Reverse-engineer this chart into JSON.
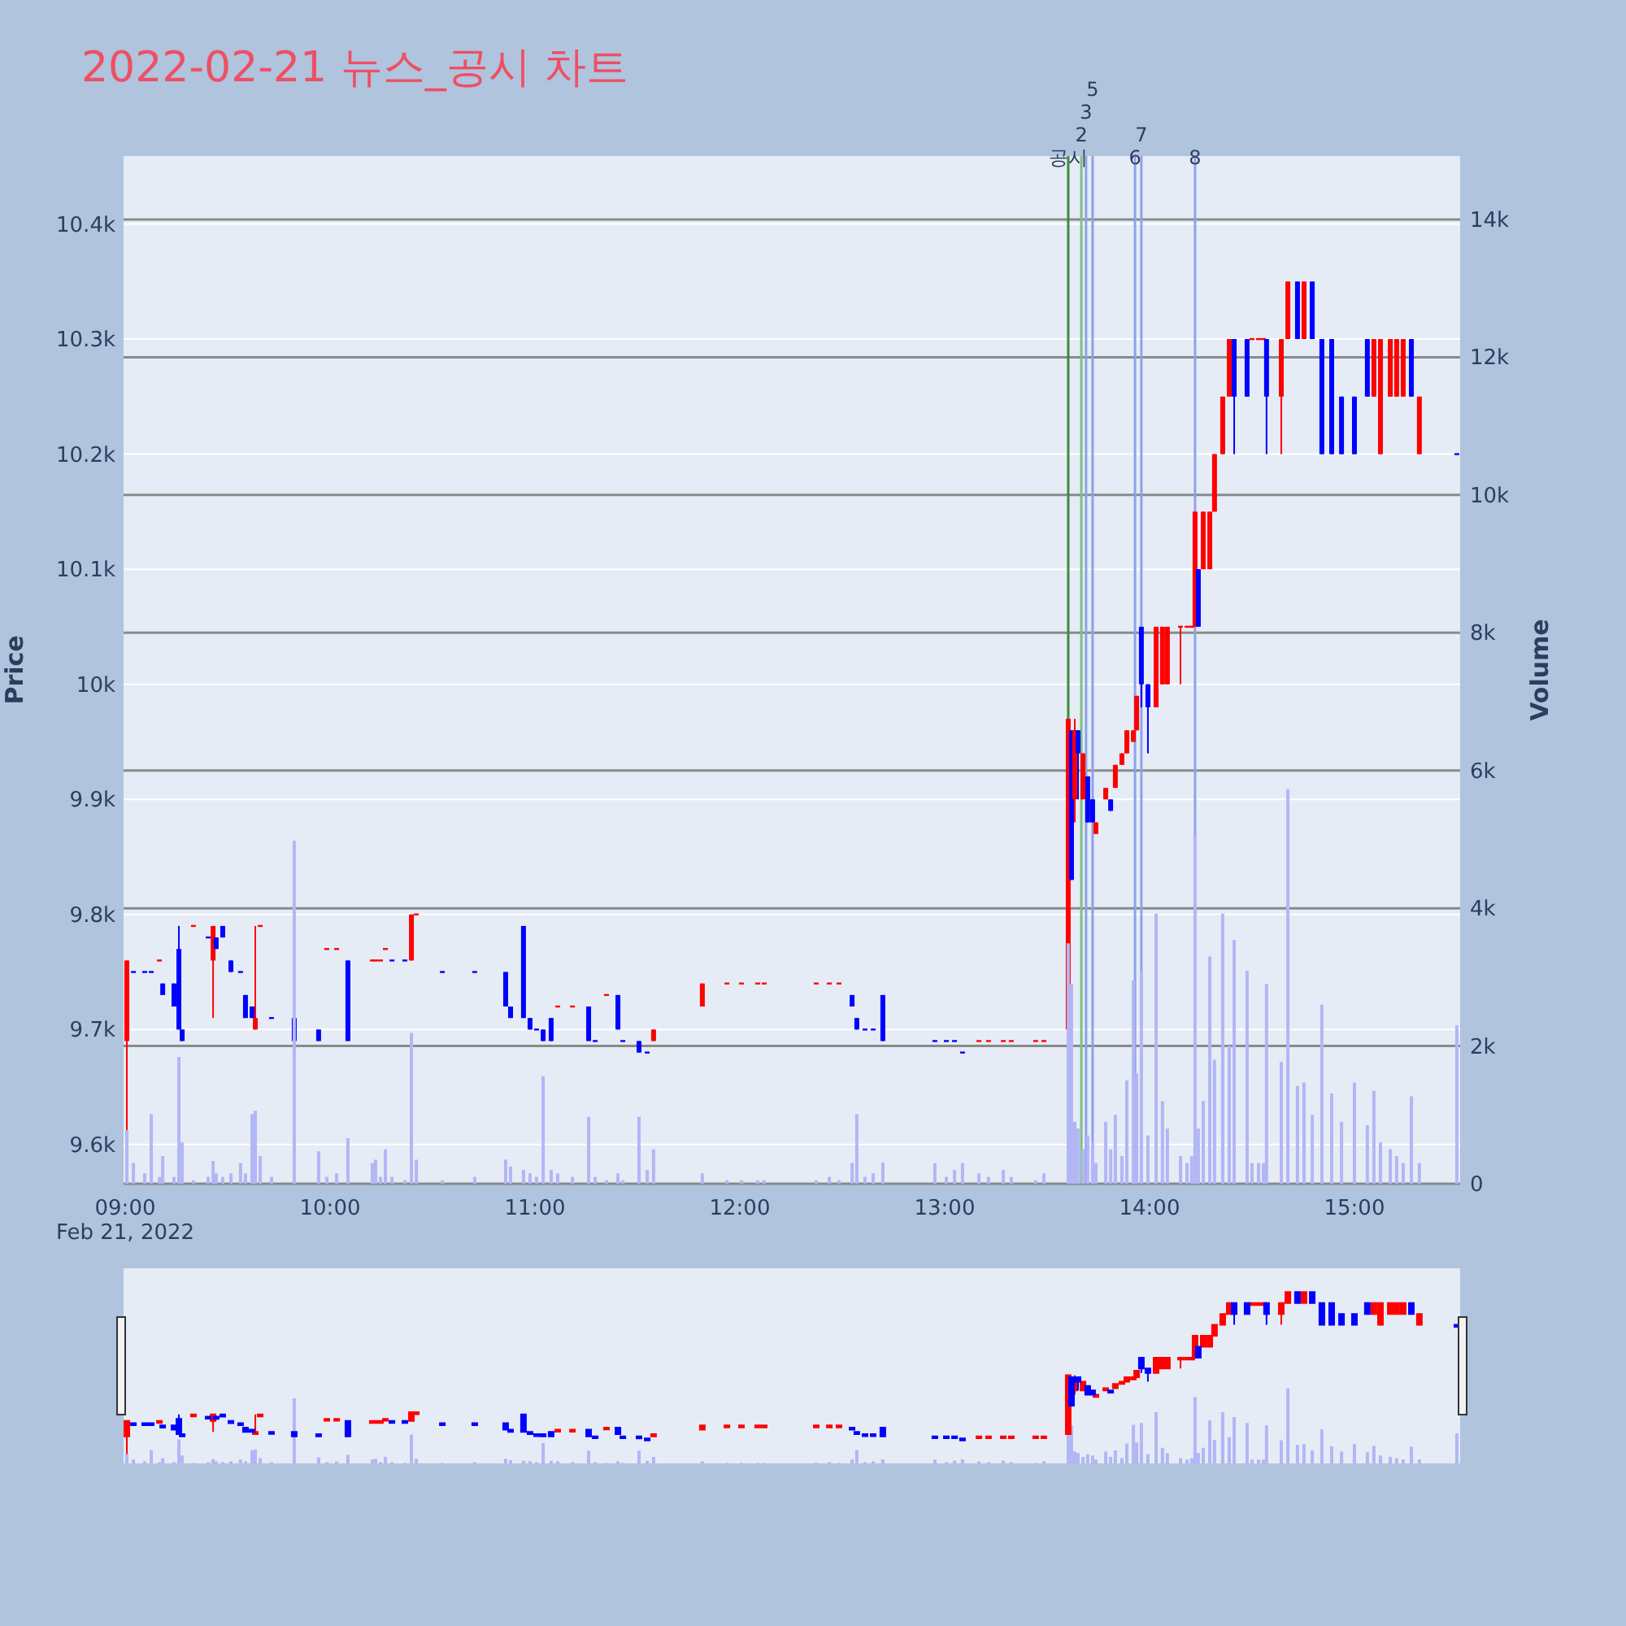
{
  "chart_data": {
    "type": "candlestick",
    "title": "2022-02-21 뉴스_공시 차트",
    "ylabel": "Price",
    "y2label": "Volume",
    "annotations": [
      "Feb 21, 2022",
      {
        "text": "2",
        "x": 13.667,
        "y": 10459
      },
      {
        "text": "3",
        "x": 13.69,
        "y": 10459
      },
      {
        "text": "5",
        "x": 13.722,
        "y": 10459
      },
      {
        "text": "6",
        "x": 13.929,
        "y": 10459
      },
      {
        "text": "7",
        "x": 13.96,
        "y": 10459
      },
      {
        "text": "8",
        "x": 14.222,
        "y": 10459
      }
    ],
    "xlim": [
      8.992,
      15.516
    ],
    "xticks": [
      {
        "value": 9,
        "label": "09:00"
      },
      {
        "value": 10,
        "label": "10:00"
      },
      {
        "value": 11,
        "label": "11:00"
      },
      {
        "value": 12,
        "label": "12:00"
      },
      {
        "value": 13,
        "label": "13:00"
      },
      {
        "value": 14,
        "label": "14:00"
      },
      {
        "value": 15,
        "label": "15:00"
      }
    ],
    "ylim": [
      9566,
      10459
    ],
    "yticks": [
      {
        "value": 9600,
        "label": "9.6k"
      },
      {
        "value": 9700,
        "label": "9.7k"
      },
      {
        "value": 9800,
        "label": "9.8k"
      },
      {
        "value": 9900,
        "label": "9.9k"
      },
      {
        "value": 10000,
        "label": "10k"
      },
      {
        "value": 10100,
        "label": "10.1k"
      },
      {
        "value": 10200,
        "label": "10.2k"
      },
      {
        "value": 10300,
        "label": "10.3k"
      },
      {
        "value": 10400,
        "label": "10.4k"
      }
    ],
    "y2lim": [
      0,
      14920
    ],
    "y2ticks": [
      0,
      {
        "value": 2000,
        "label": "2k"
      },
      {
        "value": 4000,
        "label": "4k"
      },
      {
        "value": 6000,
        "label": "6k"
      },
      {
        "value": 8000,
        "label": "8k"
      },
      {
        "value": 10000,
        "label": "10k"
      },
      {
        "value": 12000,
        "label": "12k"
      },
      {
        "value": 14000,
        "label": "14k"
      }
    ],
    "grid": "y",
    "x": [
      9.008,
      9.04,
      9.095,
      9.127,
      9.167,
      9.183,
      9.238,
      9.262,
      9.278,
      9.333,
      9.405,
      9.429,
      9.444,
      9.476,
      9.516,
      9.563,
      9.587,
      9.619,
      9.635,
      9.659,
      9.714,
      9.825,
      9.944,
      9.984,
      10.032,
      10.087,
      10.206,
      10.222,
      10.246,
      10.27,
      10.302,
      10.365,
      10.397,
      10.421,
      10.548,
      10.706,
      10.857,
      10.881,
      10.944,
      10.976,
      11.008,
      11.04,
      11.079,
      11.111,
      11.183,
      11.262,
      11.294,
      11.349,
      11.405,
      11.429,
      11.508,
      11.548,
      11.579,
      11.817,
      11.937,
      12.008,
      12.087,
      12.119,
      12.373,
      12.437,
      12.484,
      12.548,
      12.571,
      12.611,
      12.651,
      12.698,
      12.952,
      13.008,
      13.048,
      13.087,
      13.167,
      13.214,
      13.286,
      13.325,
      13.444,
      13.484,
      13.603,
      13.619,
      13.635,
      13.651,
      13.675,
      13.698,
      13.722,
      13.738,
      13.786,
      13.81,
      13.833,
      13.865,
      13.889,
      13.921,
      13.937,
      13.96,
      13.992,
      14.032,
      14.063,
      14.087,
      14.151,
      14.183,
      14.206,
      14.222,
      14.238,
      14.262,
      14.294,
      14.317,
      14.357,
      14.389,
      14.413,
      14.476,
      14.5,
      14.532,
      14.556,
      14.571,
      14.643,
      14.675,
      14.722,
      14.754,
      14.794,
      14.841,
      14.889,
      14.937,
      15.0,
      15.063,
      15.095,
      15.127,
      15.175,
      15.206,
      15.238,
      15.278,
      15.317,
      15.5
    ],
    "ohlc": [
      [
        9690,
        9760,
        9610,
        9760
      ],
      [
        9750,
        9750,
        9750,
        9750
      ],
      [
        9750,
        9750,
        9750,
        9750
      ],
      [
        9750,
        9750,
        9750,
        9750
      ],
      [
        9760,
        9760,
        9760,
        9760
      ],
      [
        9740,
        9740,
        9730,
        9730
      ],
      [
        9740,
        9740,
        9720,
        9720
      ],
      [
        9770,
        9790,
        9700,
        9700
      ],
      [
        9700,
        9700,
        9690,
        9690
      ],
      [
        9790,
        9790,
        9790,
        9790
      ],
      [
        9780,
        9780,
        9780,
        9780
      ],
      [
        9760,
        9790,
        9710,
        9790
      ],
      [
        9780,
        9780,
        9770,
        9770
      ],
      [
        9790,
        9790,
        9780,
        9780
      ],
      [
        9760,
        9760,
        9750,
        9750
      ],
      [
        9750,
        9750,
        9750,
        9750
      ],
      [
        9730,
        9730,
        9710,
        9710
      ],
      [
        9720,
        9720,
        9710,
        9710
      ],
      [
        9700,
        9790,
        9700,
        9710
      ],
      [
        9790,
        9790,
        9790,
        9790
      ],
      [
        9710,
        9710,
        9710,
        9710
      ],
      [
        9710,
        9710,
        9690,
        9690
      ],
      [
        9700,
        9700,
        9690,
        9690
      ],
      [
        9770,
        9770,
        9770,
        9770
      ],
      [
        9770,
        9770,
        9770,
        9770
      ],
      [
        9760,
        9760,
        9690,
        9690
      ],
      [
        9760,
        9760,
        9760,
        9760
      ],
      [
        9760,
        9760,
        9760,
        9760
      ],
      [
        9760,
        9760,
        9760,
        9760
      ],
      [
        9770,
        9770,
        9770,
        9770
      ],
      [
        9760,
        9760,
        9760,
        9760
      ],
      [
        9760,
        9760,
        9760,
        9760
      ],
      [
        9760,
        9800,
        9760,
        9800
      ],
      [
        9800,
        9800,
        9800,
        9800
      ],
      [
        9750,
        9750,
        9750,
        9750
      ],
      [
        9750,
        9750,
        9750,
        9750
      ],
      [
        9750,
        9750,
        9720,
        9720
      ],
      [
        9720,
        9720,
        9710,
        9710
      ],
      [
        9790,
        9790,
        9710,
        9710
      ],
      [
        9710,
        9710,
        9700,
        9700
      ],
      [
        9700,
        9700,
        9700,
        9700
      ],
      [
        9700,
        9700,
        9690,
        9690
      ],
      [
        9710,
        9710,
        9690,
        9690
      ],
      [
        9720,
        9720,
        9720,
        9720
      ],
      [
        9720,
        9720,
        9720,
        9720
      ],
      [
        9720,
        9720,
        9690,
        9690
      ],
      [
        9690,
        9690,
        9690,
        9690
      ],
      [
        9730,
        9730,
        9730,
        9730
      ],
      [
        9730,
        9730,
        9700,
        9700
      ],
      [
        9690,
        9690,
        9690,
        9690
      ],
      [
        9690,
        9690,
        9680,
        9680
      ],
      [
        9680,
        9680,
        9680,
        9680
      ],
      [
        9690,
        9700,
        9690,
        9700
      ],
      [
        9720,
        9740,
        9720,
        9740
      ],
      [
        9740,
        9740,
        9740,
        9740
      ],
      [
        9740,
        9740,
        9740,
        9740
      ],
      [
        9740,
        9740,
        9740,
        9740
      ],
      [
        9740,
        9740,
        9740,
        9740
      ],
      [
        9740,
        9740,
        9740,
        9740
      ],
      [
        9740,
        9740,
        9740,
        9740
      ],
      [
        9740,
        9740,
        9740,
        9740
      ],
      [
        9730,
        9730,
        9720,
        9720
      ],
      [
        9710,
        9710,
        9700,
        9700
      ],
      [
        9700,
        9700,
        9700,
        9700
      ],
      [
        9700,
        9700,
        9700,
        9700
      ],
      [
        9730,
        9730,
        9690,
        9690
      ],
      [
        9690,
        9690,
        9690,
        9690
      ],
      [
        9690,
        9690,
        9690,
        9690
      ],
      [
        9690,
        9690,
        9690,
        9690
      ],
      [
        9680,
        9680,
        9680,
        9680
      ],
      [
        9690,
        9690,
        9690,
        9690
      ],
      [
        9690,
        9690,
        9690,
        9690
      ],
      [
        9690,
        9690,
        9690,
        9690
      ],
      [
        9690,
        9690,
        9690,
        9690
      ],
      [
        9690,
        9690,
        9690,
        9690
      ],
      [
        9690,
        9690,
        9690,
        9690
      ],
      [
        9700,
        9970,
        9700,
        9970
      ],
      [
        9960,
        9960,
        9830,
        9830
      ],
      [
        9900,
        9970,
        9880,
        9960
      ],
      [
        9960,
        9960,
        9900,
        9940
      ],
      [
        9900,
        9940,
        9900,
        9940
      ],
      [
        9920,
        9920,
        9880,
        9880
      ],
      [
        9900,
        9900,
        9880,
        9880
      ],
      [
        9870,
        9880,
        9870,
        9880
      ],
      [
        9900,
        9910,
        9900,
        9910
      ],
      [
        9900,
        9900,
        9890,
        9890
      ],
      [
        9910,
        9930,
        9910,
        9930
      ],
      [
        9930,
        9940,
        9930,
        9940
      ],
      [
        9940,
        9960,
        9940,
        9960
      ],
      [
        9950,
        9960,
        9950,
        9960
      ],
      [
        9960,
        9990,
        9960,
        9990
      ],
      [
        10050,
        10050,
        9980,
        10000
      ],
      [
        10000,
        10000,
        9940,
        9980
      ],
      [
        9980,
        10050,
        9980,
        10050
      ],
      [
        10000,
        10050,
        10000,
        10050
      ],
      [
        10000,
        10050,
        10000,
        10050
      ],
      [
        10050,
        10050,
        10000,
        10050
      ],
      [
        10050,
        10050,
        10050,
        10050
      ],
      [
        10050,
        10050,
        10050,
        10050
      ],
      [
        10050,
        10150,
        10050,
        10150
      ],
      [
        10100,
        10100,
        10050,
        10050
      ],
      [
        10100,
        10150,
        10100,
        10150
      ],
      [
        10100,
        10150,
        10100,
        10150
      ],
      [
        10150,
        10200,
        10150,
        10200
      ],
      [
        10200,
        10250,
        10200,
        10250
      ],
      [
        10250,
        10300,
        10250,
        10300
      ],
      [
        10300,
        10300,
        10200,
        10250
      ],
      [
        10300,
        10300,
        10250,
        10250
      ],
      [
        10300,
        10300,
        10300,
        10300
      ],
      [
        10300,
        10300,
        10300,
        10300
      ],
      [
        10300,
        10300,
        10300,
        10300
      ],
      [
        10300,
        10300,
        10200,
        10250
      ],
      [
        10250,
        10300,
        10200,
        10300
      ],
      [
        10300,
        10350,
        10300,
        10350
      ],
      [
        10350,
        10350,
        10300,
        10300
      ],
      [
        10300,
        10350,
        10300,
        10350
      ],
      [
        10350,
        10350,
        10300,
        10300
      ],
      [
        10300,
        10300,
        10200,
        10200
      ],
      [
        10300,
        10300,
        10200,
        10200
      ],
      [
        10250,
        10250,
        10200,
        10200
      ],
      [
        10250,
        10250,
        10200,
        10200
      ],
      [
        10300,
        10300,
        10250,
        10250
      ],
      [
        10250,
        10300,
        10250,
        10300
      ],
      [
        10200,
        10300,
        10200,
        10300
      ],
      [
        10250,
        10300,
        10250,
        10300
      ],
      [
        10250,
        10300,
        10250,
        10300
      ],
      [
        10250,
        10300,
        10250,
        10300
      ],
      [
        10300,
        10300,
        10250,
        10250
      ],
      [
        10200,
        10250,
        10200,
        10250
      ],
      [
        10200,
        10200,
        10200,
        10200
      ]
    ],
    "colors": [
      "#ff0000",
      "#0000ff",
      "#0000ff",
      "#0000ff",
      "#ff0000",
      "#0000ff",
      "#0000ff",
      "#0000ff",
      "#0000ff",
      "#ff0000",
      "#0000ff",
      "#ff0000",
      "#0000ff",
      "#0000ff",
      "#0000ff",
      "#0000ff",
      "#0000ff",
      "#0000ff",
      "#ff0000",
      "#ff0000",
      "#0000ff",
      "#0000ff",
      "#0000ff",
      "#ff0000",
      "#ff0000",
      "#0000ff",
      "#ff0000",
      "#ff0000",
      "#ff0000",
      "#ff0000",
      "#0000ff",
      "#0000ff",
      "#ff0000",
      "#ff0000",
      "#0000ff",
      "#0000ff",
      "#0000ff",
      "#0000ff",
      "#0000ff",
      "#0000ff",
      "#0000ff",
      "#0000ff",
      "#0000ff",
      "#ff0000",
      "#ff0000",
      "#0000ff",
      "#0000ff",
      "#ff0000",
      "#0000ff",
      "#0000ff",
      "#0000ff",
      "#0000ff",
      "#ff0000",
      "#ff0000",
      "#ff0000",
      "#ff0000",
      "#ff0000",
      "#ff0000",
      "#ff0000",
      "#ff0000",
      "#ff0000",
      "#0000ff",
      "#0000ff",
      "#0000ff",
      "#0000ff",
      "#0000ff",
      "#0000ff",
      "#0000ff",
      "#0000ff",
      "#0000ff",
      "#ff0000",
      "#ff0000",
      "#ff0000",
      "#ff0000",
      "#ff0000",
      "#ff0000",
      "#ff0000",
      "#0000ff",
      "#ff0000",
      "#0000ff",
      "#ff0000",
      "#0000ff",
      "#0000ff",
      "#ff0000",
      "#ff0000",
      "#0000ff",
      "#ff0000",
      "#ff0000",
      "#ff0000",
      "#ff0000",
      "#ff0000",
      "#0000ff",
      "#0000ff",
      "#ff0000",
      "#ff0000",
      "#ff0000",
      "#ff0000",
      "#ff0000",
      "#ff0000",
      "#ff0000",
      "#0000ff",
      "#ff0000",
      "#ff0000",
      "#ff0000",
      "#ff0000",
      "#ff0000",
      "#0000ff",
      "#0000ff",
      "#ff0000",
      "#ff0000",
      "#ff0000",
      "#0000ff",
      "#ff0000",
      "#ff0000",
      "#0000ff",
      "#ff0000",
      "#0000ff",
      "#0000ff",
      "#0000ff",
      "#0000ff",
      "#0000ff",
      "#0000ff",
      "#ff0000",
      "#ff0000",
      "#ff0000",
      "#ff0000",
      "#ff0000",
      "#0000ff",
      "#ff0000",
      "#0000ff"
    ],
    "series": [
      {
        "type": "bar",
        "axis": "y2",
        "color": "#b3b6f5",
        "values": [
          780,
          300,
          150,
          1010,
          100,
          400,
          100,
          1840,
          600,
          50,
          100,
          330,
          150,
          100,
          150,
          300,
          150,
          1010,
          1060,
          400,
          100,
          4980,
          470,
          100,
          150,
          660,
          300,
          350,
          100,
          500,
          100,
          50,
          2190,
          350,
          50,
          100,
          350,
          250,
          200,
          150,
          100,
          1560,
          200,
          150,
          100,
          970,
          100,
          50,
          150,
          50,
          970,
          200,
          500,
          150,
          50,
          50,
          50,
          50,
          50,
          100,
          50,
          300,
          1010,
          100,
          150,
          310,
          300,
          100,
          200,
          300,
          150,
          100,
          200,
          100,
          50,
          150,
          3490,
          2900,
          900,
          800,
          500,
          700,
          600,
          300,
          900,
          500,
          1000,
          400,
          1500,
          2950,
          1600,
          3090,
          700,
          3920,
          1200,
          800,
          400,
          300,
          400,
          5070,
          800,
          1200,
          3300,
          1800,
          3920,
          2000,
          3540,
          3090,
          300,
          300,
          300,
          2900,
          1770,
          5730,
          1420,
          1470,
          1000,
          2600,
          1310,
          900,
          1470,
          850,
          1350,
          600,
          500,
          400,
          300,
          1270,
          300,
          2300
        ]
      }
    ],
    "ref_lines": [
      {
        "axis": "x",
        "value": 13.603,
        "label": "공시",
        "color": "#3d8b3d"
      },
      {
        "axis": "x",
        "value": 13.667,
        "color": "#7fbf7f"
      },
      {
        "axis": "x",
        "value": 13.69,
        "color": "#8ea2e8"
      },
      {
        "axis": "x",
        "value": 13.722,
        "color": "#8ea2e8"
      },
      {
        "axis": "x",
        "value": 13.929,
        "color": "#8ea2e8"
      },
      {
        "axis": "x",
        "value": 13.96,
        "color": "#8ea2e8"
      },
      {
        "axis": "x",
        "value": 14.222,
        "color": "#8ea2e8"
      }
    ]
  }
}
